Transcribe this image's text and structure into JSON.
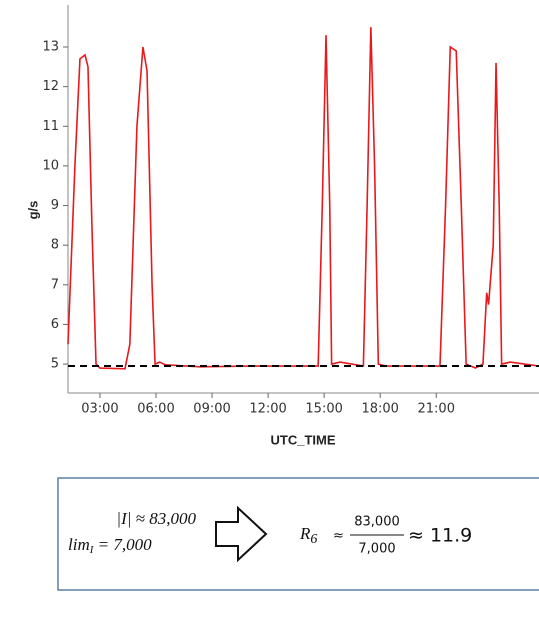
{
  "chart_data": {
    "type": "line",
    "ylabel": "g/s",
    "xlabel": "UTC_TIME",
    "x": [
      1.29,
      1.66,
      1.93,
      2.2,
      2.36,
      2.57,
      2.79,
      3.0,
      4.34,
      4.6,
      4.98,
      5.3,
      5.52,
      5.79,
      5.95,
      6.2,
      6.5,
      8.36,
      11.0,
      14.68,
      14.9,
      15.1,
      15.3,
      15.4,
      15.85,
      17.1,
      17.3,
      17.5,
      17.7,
      17.9,
      18.3,
      21.2,
      21.5,
      21.75,
      22.07,
      22.34,
      22.6,
      23.1,
      23.5,
      23.7,
      23.8,
      24.05,
      24.2,
      24.37,
      24.5,
      24.96,
      26.5
    ],
    "series": [
      {
        "color": "#e8191c",
        "values": [
          5.5,
          10,
          12.7,
          12.8,
          12.5,
          8.5,
          5.0,
          4.9,
          4.88,
          5.5,
          11,
          13.0,
          12.4,
          7,
          5.0,
          5.05,
          4.98,
          4.93,
          4.95,
          4.95,
          9,
          13.3,
          9,
          5.0,
          5.05,
          4.95,
          9,
          13.5,
          10,
          5.0,
          4.95,
          4.95,
          9,
          13.0,
          12.9,
          9,
          5.0,
          4.9,
          5.0,
          6.8,
          6.5,
          8,
          12.6,
          9,
          5.0,
          5.05,
          4.95
        ]
      }
    ],
    "reference_line": {
      "value": 4.95,
      "color": "#000000",
      "style": "dashed"
    },
    "xlim": [
      1.29,
      26.5
    ],
    "ylim": [
      4.27,
      14.06
    ],
    "xticks": [
      {
        "value": 3,
        "label": "03:00"
      },
      {
        "value": 6,
        "label": "06:00"
      },
      {
        "value": 9,
        "label": "09:00"
      },
      {
        "value": 12,
        "label": "12:00"
      },
      {
        "value": 15,
        "label": "15:00"
      },
      {
        "value": 18,
        "label": "18:00"
      },
      {
        "value": 21,
        "label": "21:00"
      }
    ],
    "yticks": [
      5,
      6,
      7,
      8,
      9,
      10,
      11,
      12,
      13
    ],
    "grid": false
  },
  "annotation": {
    "line1": "|I| ≈ 83,000",
    "line2_base": "lim",
    "line2_sub": "I",
    "line2_rest": " = 7,000",
    "result_base": "R",
    "result_sub": "6",
    "approx": "≈",
    "numerator": "83,000",
    "denominator": "7,000",
    "result": "≈ 11.9"
  }
}
